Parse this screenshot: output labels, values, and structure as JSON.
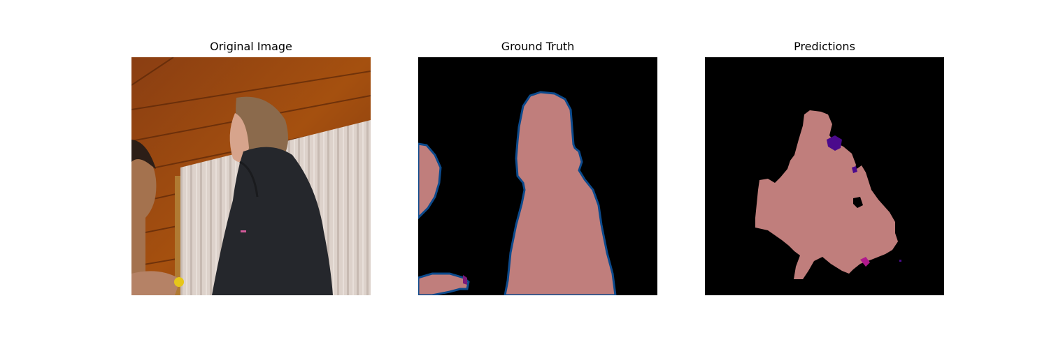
{
  "figure": {
    "panels": [
      {
        "title": "Original Image",
        "content": "photo"
      },
      {
        "title": "Ground Truth",
        "content": "segmentation-mask"
      },
      {
        "title": "Predictions",
        "content": "segmentation-mask"
      }
    ],
    "colors": {
      "background": "#000000",
      "person": "#c07e7c",
      "boundary": "#0c4a8c",
      "purple": "#4b0a8c",
      "magenta": "#b0188c"
    }
  }
}
